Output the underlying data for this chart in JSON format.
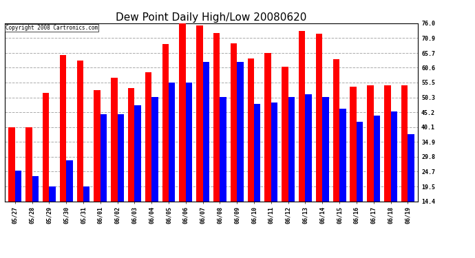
{
  "title": "Dew Point Daily High/Low 20080620",
  "copyright": "Copyright 2008 Cartronics.com",
  "dates": [
    "05/27",
    "05/28",
    "05/29",
    "05/30",
    "05/31",
    "06/01",
    "06/02",
    "06/03",
    "06/04",
    "06/05",
    "06/06",
    "06/07",
    "06/08",
    "06/09",
    "06/10",
    "06/11",
    "06/12",
    "06/13",
    "06/14",
    "06/15",
    "06/16",
    "06/17",
    "06/18",
    "06/19"
  ],
  "highs": [
    40.1,
    40.1,
    51.8,
    64.9,
    63.0,
    52.9,
    57.2,
    53.6,
    59.0,
    68.9,
    75.9,
    75.2,
    72.5,
    69.1,
    63.9,
    65.7,
    61.0,
    73.4,
    72.3,
    63.5,
    54.0,
    54.5,
    54.5,
    54.5
  ],
  "lows": [
    25.0,
    23.0,
    19.5,
    28.5,
    19.5,
    44.5,
    44.5,
    47.5,
    50.5,
    55.5,
    55.5,
    62.5,
    50.5,
    62.5,
    48.0,
    48.5,
    50.5,
    51.5,
    50.5,
    46.5,
    42.0,
    44.0,
    45.5,
    37.5
  ],
  "ylim": [
    14.4,
    76.0
  ],
  "yticks": [
    14.4,
    19.5,
    24.7,
    29.8,
    34.9,
    40.1,
    45.2,
    50.3,
    55.5,
    60.6,
    65.7,
    70.9,
    76.0
  ],
  "bar_color_high": "#ff0000",
  "bar_color_low": "#0000ff",
  "background_color": "#ffffff",
  "grid_color": "#aaaaaa",
  "title_fontsize": 11,
  "tick_fontsize": 6,
  "copyright_fontsize": 5.5
}
